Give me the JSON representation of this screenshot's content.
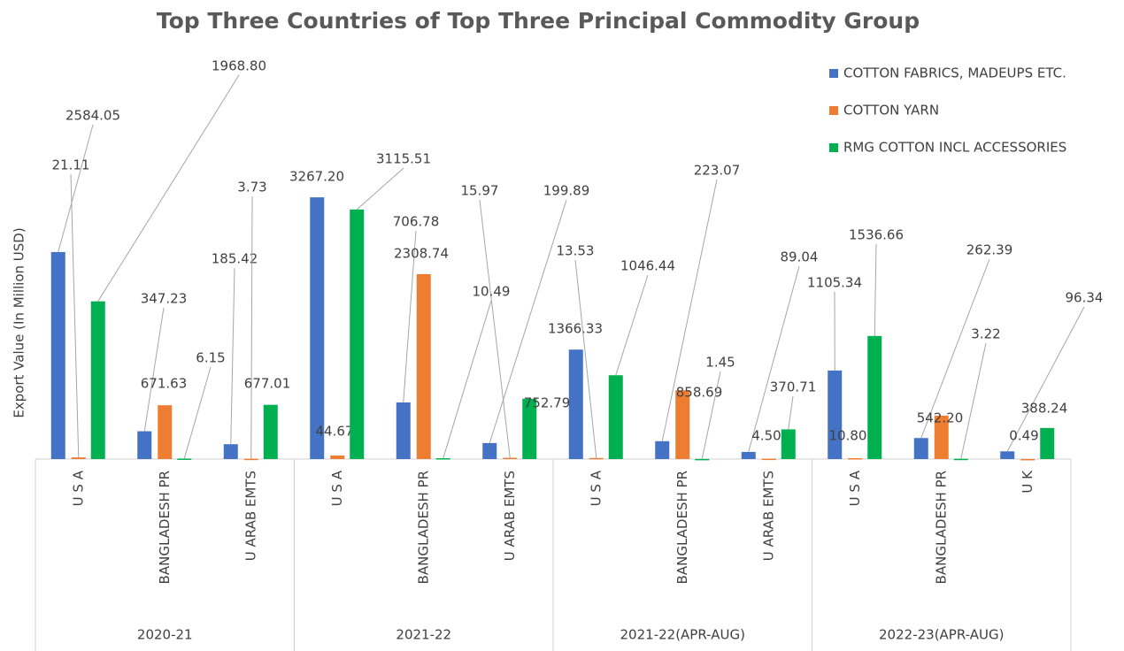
{
  "chart_data": {
    "type": "bar",
    "title": "Top Three Countries of Top Three Principal Commodity Group",
    "y_label": "Export Value (In Million USD)",
    "groups": [
      "2020-21",
      "2021-22",
      "2021-22(APR-AUG)",
      "2022-23(APR-AUG)"
    ],
    "categories": [
      "U S A",
      "BANGLADESH PR",
      "U ARAB EMTS",
      "U S A",
      "BANGLADESH PR",
      "U ARAB EMTS",
      "U S A",
      "BANGLADESH PR",
      "U ARAB EMTS",
      "U S A",
      "BANGLADESH PR",
      "U K"
    ],
    "series": [
      {
        "name": "COTTON FABRICS, MADEUPS ETC.",
        "color": "#4472c4",
        "values": [
          2584.05,
          347.23,
          185.42,
          3267.2,
          706.78,
          199.89,
          1366.33,
          223.07,
          89.04,
          1105.34,
          262.39,
          96.34
        ],
        "value_labels": [
          "2584.05",
          "347.23",
          "185.42",
          "3267.20",
          "706.78",
          "199.89",
          "1366.33",
          "223.07",
          "89.04",
          "1105.34",
          "262.39",
          "96.34"
        ]
      },
      {
        "name": "COTTON YARN",
        "color": "#ed7d31",
        "values": [
          21.11,
          671.63,
          3.73,
          44.67,
          2308.74,
          15.97,
          13.53,
          858.69,
          4.5,
          10.8,
          542.2,
          0.49
        ],
        "value_labels": [
          "21.11",
          "671.63",
          "3.73",
          "44.67",
          "2308.74",
          "15.97",
          "13.53",
          "858.69",
          "4.50",
          "10.80",
          "542.20",
          "0.49"
        ]
      },
      {
        "name": "RMG COTTON INCL ACCESSORIES",
        "color": "#00b050",
        "values": [
          1968.8,
          6.15,
          677.01,
          3115.51,
          10.49,
          752.79,
          1046.44,
          1.45,
          370.71,
          1536.66,
          3.22,
          388.24
        ],
        "value_labels": [
          "1968.80",
          "6.15",
          "677.01",
          "3115.51",
          "10.49",
          "752.79",
          "1046.44",
          "1.45",
          "370.71",
          "1536.66",
          "3.22",
          "388.24"
        ]
      }
    ],
    "ylim": [
      0,
      3500
    ],
    "legend": "top-right"
  }
}
